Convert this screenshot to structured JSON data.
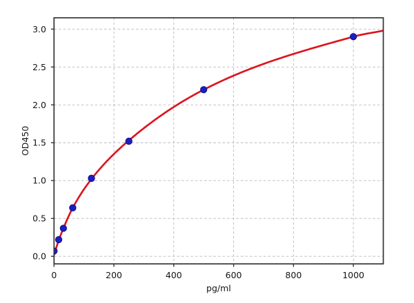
{
  "chart_data": {
    "type": "scatter",
    "title": "",
    "xlabel": "pg/ml",
    "ylabel": "OD450",
    "xlim": [
      0,
      1100
    ],
    "ylim": [
      -0.1,
      3.15
    ],
    "xticks": [
      0,
      200,
      400,
      600,
      800,
      1000
    ],
    "yticks": [
      0,
      0.5,
      1,
      1.5,
      2,
      2.5,
      3
    ],
    "ytick_decimals": 1,
    "grid": true,
    "grid_style": "dashed",
    "legend": "none",
    "points": {
      "label": "standards",
      "marker": "circle",
      "color": "#1d1dc4",
      "edge_color": "#10107a",
      "x": [
        0,
        15.6,
        31.25,
        62.5,
        125,
        250,
        500,
        1000
      ],
      "y": [
        0.07,
        0.22,
        0.37,
        0.64,
        1.03,
        1.52,
        2.2,
        2.9
      ]
    },
    "fit_curve": {
      "label": "fit",
      "color": "#dc1520",
      "x": [
        0,
        15.6,
        31.25,
        62.5,
        125,
        250,
        500,
        1000,
        1100
      ],
      "y": [
        0.02,
        0.21,
        0.37,
        0.64,
        1.02,
        1.53,
        2.2,
        2.9,
        2.98
      ]
    },
    "colors": {
      "axis": "#333333",
      "grid": "#b8b8b8",
      "text": "#141414",
      "background": "#ffffff"
    }
  }
}
